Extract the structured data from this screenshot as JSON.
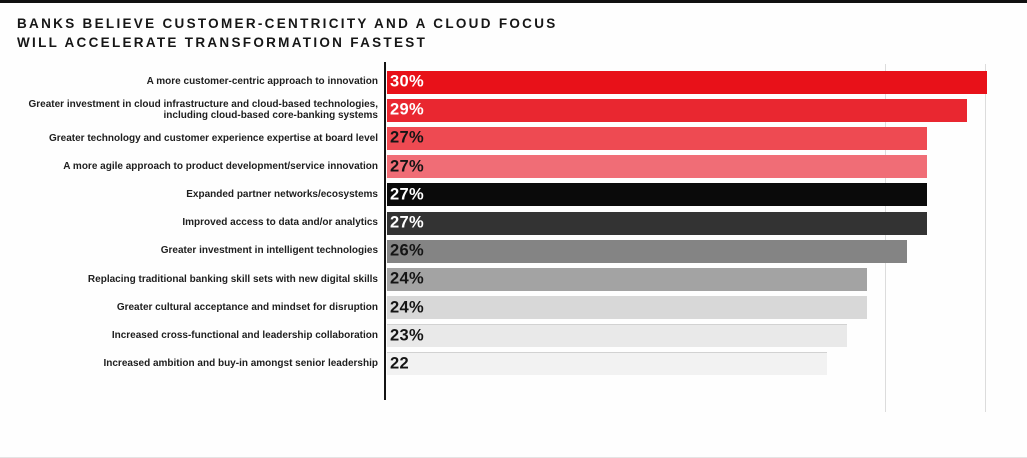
{
  "title": {
    "line1": "BANKS BELIEVE CUSTOMER-CENTRICITY AND A CLOUD FOCUS",
    "line2": "WILL ACCELERATE TRANSFORMATION FASTEST"
  },
  "chart_data": {
    "type": "bar",
    "orientation": "horizontal",
    "title": "BANKS BELIEVE CUSTOMER-CENTRICITY AND A CLOUD FOCUS WILL ACCELERATE TRANSFORMATION FASTEST",
    "categories": [
      "A more customer-centric approach to innovation",
      "Greater investment in cloud infrastructure and cloud-based technologies, including cloud-based core-banking systems",
      "Greater technology and customer experience expertise at board level",
      "A more agile approach to product development/service innovation",
      "Expanded partner networks/ecosystems",
      "Improved access to data and/or analytics",
      "Greater investment in intelligent technologies",
      "Replacing traditional banking skill sets with new digital skills",
      "Greater cultural acceptance and mindset for disruption",
      "Increased cross-functional and leadership collaboration",
      "Increased ambition and buy-in amongst senior leadership"
    ],
    "values": [
      30,
      29,
      27,
      27,
      27,
      27,
      26,
      24,
      24,
      23,
      22
    ],
    "value_labels": [
      "30%",
      "29%",
      "27%",
      "27%",
      "27%",
      "27%",
      "26%",
      "24%",
      "24%",
      "23%",
      "22"
    ],
    "bar_colors": [
      "#e81119",
      "#e92730",
      "#ee4a52",
      "#f06d76",
      "#0a0a0a",
      "#333333",
      "#848484",
      "#a3a3a3",
      "#d8d8d8",
      "#e9e9e9",
      "#f2f2f2"
    ],
    "value_text_colors": [
      "#ffffff",
      "#ffffff",
      "#151515",
      "#151515",
      "#ffffff",
      "#ffffff",
      "#151515",
      "#151515",
      "#151515",
      "#151515",
      "#151515"
    ],
    "xlabel": "",
    "ylabel": "",
    "xlim": [
      0,
      30
    ],
    "gridlines_at_percent": [
      25,
      30
    ],
    "legend": "none",
    "grid": "faint vertical lines at 25 and 30",
    "axis_line_color": "#141414"
  }
}
